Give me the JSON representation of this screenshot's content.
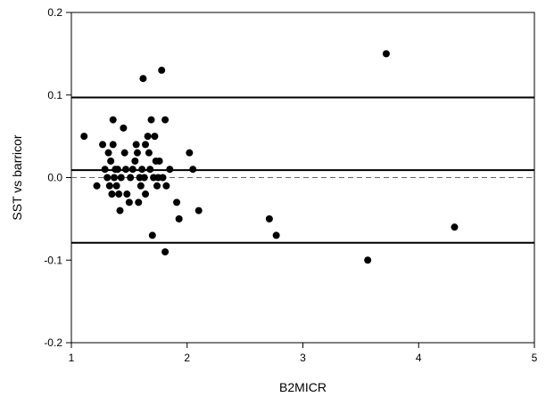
{
  "chart_data": {
    "type": "scatter",
    "title": "",
    "xlabel": "B2MICR",
    "ylabel": "SST vs barricor",
    "xlim": [
      1,
      5
    ],
    "ylim": [
      -0.2,
      0.2
    ],
    "x_ticks": [
      1,
      2,
      3,
      4,
      5
    ],
    "y_ticks": [
      -0.2,
      -0.1,
      0.0,
      0.1,
      0.2
    ],
    "x_tick_labels": [
      "1",
      "2",
      "3",
      "4",
      "5"
    ],
    "y_tick_labels": [
      "-0.2",
      "-0.1",
      "0.0",
      "0.1",
      "0.2"
    ],
    "grid": false,
    "reference_lines": [
      {
        "y": 0.097,
        "style": "solid"
      },
      {
        "y": 0.009,
        "style": "solid"
      },
      {
        "y": -0.079,
        "style": "solid"
      },
      {
        "y": 0.0,
        "style": "dashed"
      }
    ],
    "points": [
      [
        1.11,
        0.05
      ],
      [
        1.22,
        -0.01
      ],
      [
        1.27,
        0.04
      ],
      [
        1.29,
        0.01
      ],
      [
        1.31,
        0.0
      ],
      [
        1.32,
        0.03
      ],
      [
        1.33,
        -0.01
      ],
      [
        1.34,
        0.02
      ],
      [
        1.35,
        -0.02
      ],
      [
        1.36,
        0.04
      ],
      [
        1.36,
        0.07
      ],
      [
        1.37,
        0.0
      ],
      [
        1.38,
        0.01
      ],
      [
        1.39,
        -0.01
      ],
      [
        1.4,
        0.01
      ],
      [
        1.41,
        -0.02
      ],
      [
        1.42,
        -0.04
      ],
      [
        1.43,
        0.0
      ],
      [
        1.45,
        0.06
      ],
      [
        1.46,
        0.03
      ],
      [
        1.47,
        0.01
      ],
      [
        1.48,
        -0.02
      ],
      [
        1.5,
        -0.03
      ],
      [
        1.51,
        0.0
      ],
      [
        1.53,
        0.01
      ],
      [
        1.55,
        0.02
      ],
      [
        1.56,
        0.04
      ],
      [
        1.57,
        0.03
      ],
      [
        1.58,
        -0.03
      ],
      [
        1.59,
        0.0
      ],
      [
        1.6,
        -0.01
      ],
      [
        1.61,
        0.01
      ],
      [
        1.62,
        0.12
      ],
      [
        1.63,
        0.0
      ],
      [
        1.64,
        -0.02
      ],
      [
        1.64,
        0.04
      ],
      [
        1.66,
        0.05
      ],
      [
        1.67,
        0.03
      ],
      [
        1.68,
        0.01
      ],
      [
        1.69,
        0.07
      ],
      [
        1.7,
        -0.07
      ],
      [
        1.71,
        0.0
      ],
      [
        1.72,
        0.05
      ],
      [
        1.73,
        0.02
      ],
      [
        1.74,
        -0.01
      ],
      [
        1.75,
        0.0
      ],
      [
        1.76,
        0.02
      ],
      [
        1.78,
        0.13
      ],
      [
        1.79,
        0.0
      ],
      [
        1.81,
        0.07
      ],
      [
        1.81,
        -0.09
      ],
      [
        1.82,
        -0.01
      ],
      [
        1.85,
        0.01
      ],
      [
        1.91,
        -0.03
      ],
      [
        1.93,
        -0.05
      ],
      [
        2.02,
        0.03
      ],
      [
        2.05,
        0.01
      ],
      [
        2.1,
        -0.04
      ],
      [
        2.71,
        -0.05
      ],
      [
        2.77,
        -0.07
      ],
      [
        3.56,
        -0.1
      ],
      [
        3.72,
        0.15
      ],
      [
        4.31,
        -0.06
      ]
    ],
    "marker_color": "#000000",
    "line_color": "#000000"
  }
}
